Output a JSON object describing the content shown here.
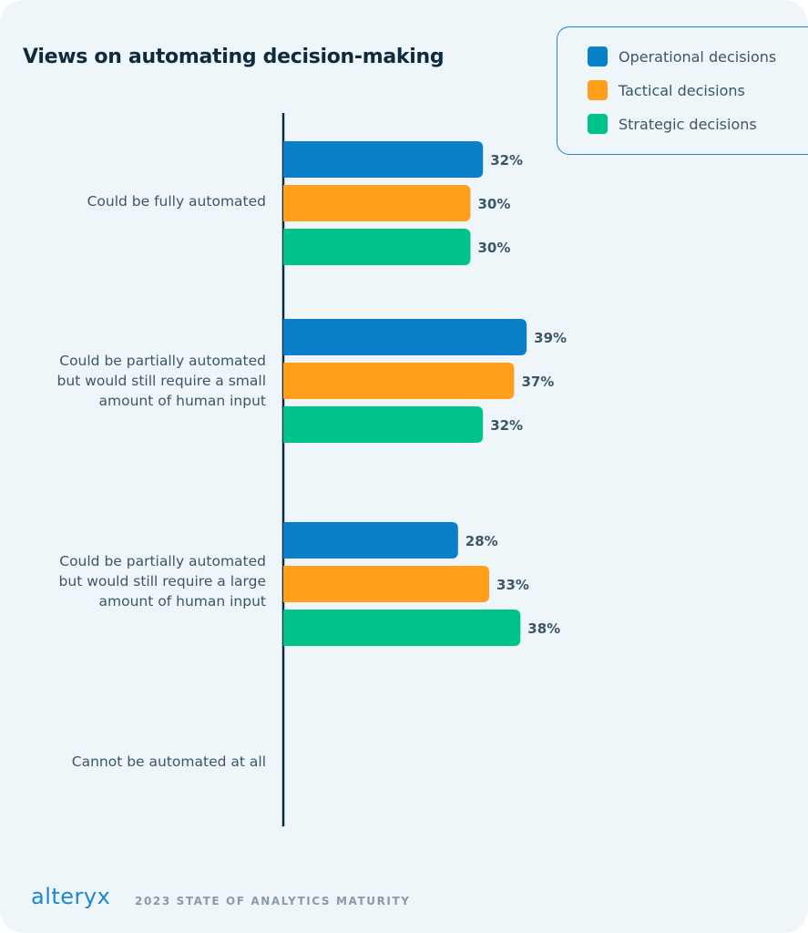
{
  "chart_data": {
    "type": "bar",
    "orientation": "horizontal",
    "title": "Views on automating decision-making",
    "categories": [
      "Could be fully automated",
      "Could be partially automated\nbut would still require a small\namount of human input",
      "Could be partially automated\nbut would still require a large\namount of human input",
      "Cannot be automated at all"
    ],
    "series": [
      {
        "name": "Operational decisions",
        "color": "#0a7fca",
        "values": [
          32,
          39,
          28,
          null
        ]
      },
      {
        "name": "Tactical decisions",
        "color": "#ff9f1c",
        "values": [
          30,
          37,
          33,
          null
        ]
      },
      {
        "name": "Strategic decisions",
        "color": "#00c389",
        "values": [
          30,
          32,
          38,
          null
        ]
      }
    ],
    "value_suffix": "%",
    "legend_position": "top-right",
    "grid": false,
    "xlim": [
      0,
      100
    ]
  },
  "footer": {
    "brand": "alteryx",
    "report": "2023 STATE OF ANALYTICS MATURITY"
  }
}
